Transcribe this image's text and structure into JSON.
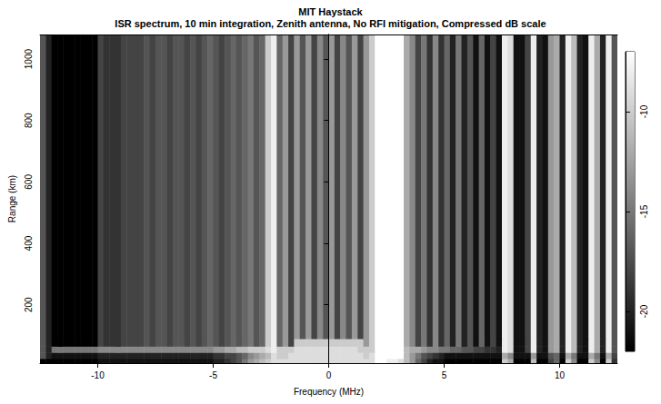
{
  "chart_data": {
    "type": "heatmap",
    "title": "MIT Haystack",
    "subtitle": "ISR spectrum, 10 min integration, Zenith antenna, No RFI mitigation, Compressed dB scale",
    "x_label": "Frequency (MHz)",
    "y_label": "Range (km)",
    "xlim": [
      -12.5,
      12.5
    ],
    "xticks": [
      -10,
      -5,
      0,
      5,
      10
    ],
    "ylim": [
      10,
      1080
    ],
    "yticks": [
      200,
      400,
      600,
      800,
      1000
    ],
    "grid": false,
    "x_bins": [
      -12.5,
      -12.25,
      -12,
      -11.75,
      -11.5,
      -11.25,
      -11,
      -10.75,
      -10.5,
      -10.25,
      -10,
      -9.75,
      -9.5,
      -9.25,
      -9,
      -8.75,
      -8.5,
      -8.25,
      -8,
      -7.75,
      -7.5,
      -7.25,
      -7,
      -6.75,
      -6.5,
      -6.25,
      -6,
      -5.75,
      -5.5,
      -5.25,
      -5,
      -4.75,
      -4.5,
      -4.25,
      -4,
      -3.75,
      -3.5,
      -3.25,
      -3,
      -2.75,
      -2.5,
      -2.25,
      -2,
      -1.75,
      -1.5,
      -1.25,
      -1,
      -0.75,
      -0.5,
      -0.25,
      0,
      0.25,
      0.5,
      0.75,
      1,
      1.25,
      1.5,
      1.75,
      2,
      2.25,
      2.5,
      2.75,
      3,
      3.25,
      3.5,
      3.75,
      4,
      4.25,
      4.5,
      4.75,
      5,
      5.25,
      5.5,
      5.75,
      6,
      6.25,
      6.5,
      6.75,
      7,
      7.25,
      7.5,
      7.75,
      8,
      8.25,
      8.5,
      8.75,
      9,
      9.25,
      9.5,
      9.75,
      10,
      10.25,
      10.5,
      10.75,
      11,
      11.25,
      11.5,
      11.75,
      12,
      12.25,
      12.5
    ],
    "y_bins": [
      10,
      25,
      45,
      65,
      90,
      1080
    ],
    "z": [
      [
        -22,
        -22,
        -22,
        -22,
        -22,
        -22,
        -22,
        -22,
        -22,
        -22,
        -21,
        -21,
        -21,
        -21,
        -21,
        -21,
        -21,
        -21,
        -21,
        -21,
        -21,
        -21,
        -21,
        -21,
        -21,
        -21,
        -21,
        -21,
        -21,
        -21,
        -20,
        -20,
        -19,
        -18,
        -17,
        -15,
        -13,
        -12,
        -11,
        -10,
        -9,
        -9,
        -9,
        -9,
        -9,
        -9,
        -9,
        -9,
        -9,
        -9,
        -9,
        -9,
        -9,
        -9,
        -9,
        -9,
        -9,
        -9,
        -7,
        -7,
        -8,
        -8,
        -9,
        -11,
        -13,
        -16,
        -18,
        -20,
        -21,
        -21,
        -22,
        -22,
        -22,
        -22,
        -22,
        -22,
        -22,
        -22,
        -22,
        -22,
        -10,
        -12,
        -22,
        -22,
        -22,
        -11,
        -22,
        -22,
        -18,
        -16,
        -22,
        -10,
        -14,
        -22,
        -22,
        -10,
        -14,
        -22,
        -10,
        -19
      ],
      [
        -17,
        -20,
        -21,
        -21,
        -21,
        -21,
        -21,
        -21,
        -21,
        -21,
        -20,
        -20,
        -20,
        -20,
        -20,
        -20,
        -20,
        -20,
        -20,
        -20,
        -20,
        -20,
        -20,
        -20,
        -20,
        -20,
        -20,
        -20,
        -20,
        -20,
        -19,
        -19,
        -18,
        -18,
        -17,
        -16,
        -14,
        -13,
        -12,
        -11,
        -9,
        -10,
        -10,
        -9,
        -9,
        -9,
        -9,
        -9,
        -9,
        -9,
        -9,
        -9,
        -9,
        -9,
        -9,
        -9,
        -10,
        -9,
        -7,
        -7,
        -7,
        -7,
        -7,
        -11,
        -13,
        -15,
        -17,
        -18,
        -19,
        -20,
        -21,
        -21,
        -21,
        -21,
        -21,
        -21,
        -21,
        -21,
        -21,
        -21,
        -12,
        -14,
        -21,
        -21,
        -21,
        -13,
        -21,
        -21,
        -17,
        -16,
        -21,
        -12,
        -15,
        -21,
        -21,
        -12,
        -15,
        -21,
        -12,
        -18
      ],
      [
        -17,
        -20,
        -15,
        -15,
        -15,
        -15,
        -15,
        -15,
        -15,
        -15,
        -14,
        -14,
        -14,
        -14,
        -14,
        -14,
        -14,
        -14,
        -14,
        -14,
        -14,
        -14,
        -14,
        -14,
        -14,
        -14,
        -14,
        -14,
        -14,
        -14,
        -13,
        -13,
        -12,
        -12,
        -11,
        -11,
        -10,
        -10,
        -10,
        -9,
        -8,
        -10,
        -10,
        -10,
        -9,
        -9,
        -9,
        -9,
        -9,
        -9,
        -9,
        -9,
        -9,
        -9,
        -9,
        -10,
        -10,
        -10,
        -7,
        -7,
        -7,
        -7,
        -7,
        -11,
        -12,
        -12,
        -13,
        -14,
        -14,
        -15,
        -15,
        -16,
        -16,
        -17,
        -17,
        -18,
        -18,
        -19,
        -19,
        -20,
        -8,
        -9,
        -21,
        -21,
        -18,
        -8,
        -20,
        -21,
        -13,
        -12,
        -20,
        -8,
        -11,
        -20,
        -21,
        -8,
        -12,
        -20,
        -8,
        -17
      ],
      [
        -17,
        -20,
        -22,
        -22,
        -22,
        -22,
        -22,
        -22,
        -22,
        -22,
        -18,
        -19,
        -19,
        -19,
        -18,
        -18,
        -18,
        -18,
        -17,
        -18,
        -17,
        -17,
        -18,
        -17,
        -17,
        -18,
        -17,
        -18,
        -17,
        -16,
        -17,
        -18,
        -17,
        -16,
        -17,
        -16,
        -15,
        -17,
        -16,
        -10,
        -8,
        -16,
        -13,
        -18,
        -10,
        -10,
        -10,
        -10,
        -10,
        -10,
        -10,
        -10,
        -10,
        -10,
        -10,
        -10,
        -13,
        -10,
        -7,
        -7,
        -7,
        -7,
        -7,
        -12,
        -14,
        -18,
        -15,
        -19,
        -14,
        -19,
        -16,
        -20,
        -15,
        -20,
        -17,
        -21,
        -16,
        -21,
        -18,
        -21,
        -8,
        -9,
        -21,
        -21,
        -18,
        -8,
        -20,
        -21,
        -13,
        -12,
        -20,
        -8,
        -11,
        -20,
        -21,
        -8,
        -12,
        -20,
        -8,
        -17
      ],
      [
        -17,
        -20,
        -22,
        -22,
        -22,
        -22,
        -22,
        -22,
        -22,
        -22,
        -18,
        -19,
        -19,
        -19,
        -18,
        -18,
        -18,
        -18,
        -17,
        -18,
        -17,
        -17,
        -18,
        -17,
        -17,
        -18,
        -17,
        -18,
        -17,
        -16,
        -17,
        -18,
        -17,
        -16,
        -17,
        -16,
        -15,
        -17,
        -16,
        -10,
        -8,
        -16,
        -13,
        -18,
        -13,
        -17,
        -13,
        -18,
        -14,
        -17,
        -13,
        -18,
        -14,
        -17,
        -13,
        -18,
        -13,
        -10,
        -7,
        -7,
        -7,
        -7,
        -7,
        -12,
        -14,
        -18,
        -15,
        -19,
        -14,
        -19,
        -16,
        -20,
        -15,
        -20,
        -17,
        -21,
        -16,
        -21,
        -18,
        -21,
        -8,
        -9,
        -21,
        -21,
        -18,
        -8,
        -20,
        -21,
        -13,
        -12,
        -20,
        -8,
        -11,
        -20,
        -21,
        -8,
        -12,
        -20,
        -8,
        -17
      ]
    ],
    "colorbar": {
      "range": [
        -22,
        -7
      ],
      "ticks": [
        -20,
        -15,
        -10
      ]
    }
  }
}
